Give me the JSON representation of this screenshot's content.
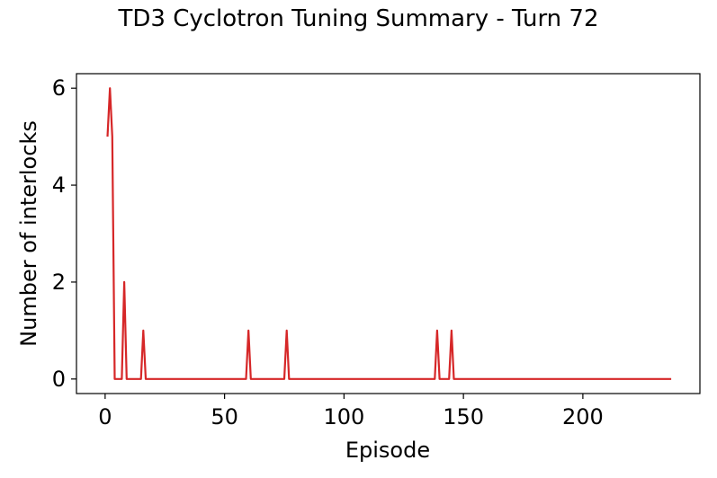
{
  "chart_data": {
    "type": "line",
    "title": "TD3 Cyclotron Tuning Summary - Turn 72",
    "xlabel": "Episode",
    "ylabel": "Number of interlocks",
    "xlim": [
      -12,
      249
    ],
    "ylim": [
      -0.3,
      6.3
    ],
    "x_ticks": [
      0,
      50,
      100,
      150,
      200
    ],
    "y_ticks": [
      0,
      2,
      4,
      6
    ],
    "grid": false,
    "legend": "none",
    "series": [
      {
        "color": "#d62728",
        "points": [
          [
            1,
            5
          ],
          [
            2,
            6
          ],
          [
            3,
            5
          ],
          [
            4,
            0
          ],
          [
            7,
            0
          ],
          [
            8,
            2
          ],
          [
            9,
            0
          ],
          [
            15,
            0
          ],
          [
            16,
            1
          ],
          [
            17,
            0
          ],
          [
            59,
            0
          ],
          [
            60,
            1
          ],
          [
            61,
            0
          ],
          [
            75,
            0
          ],
          [
            76,
            1
          ],
          [
            77,
            0
          ],
          [
            138,
            0
          ],
          [
            139,
            1
          ],
          [
            140,
            0
          ],
          [
            144,
            0
          ],
          [
            145,
            1
          ],
          [
            146,
            0
          ],
          [
            237,
            0
          ]
        ]
      }
    ]
  }
}
